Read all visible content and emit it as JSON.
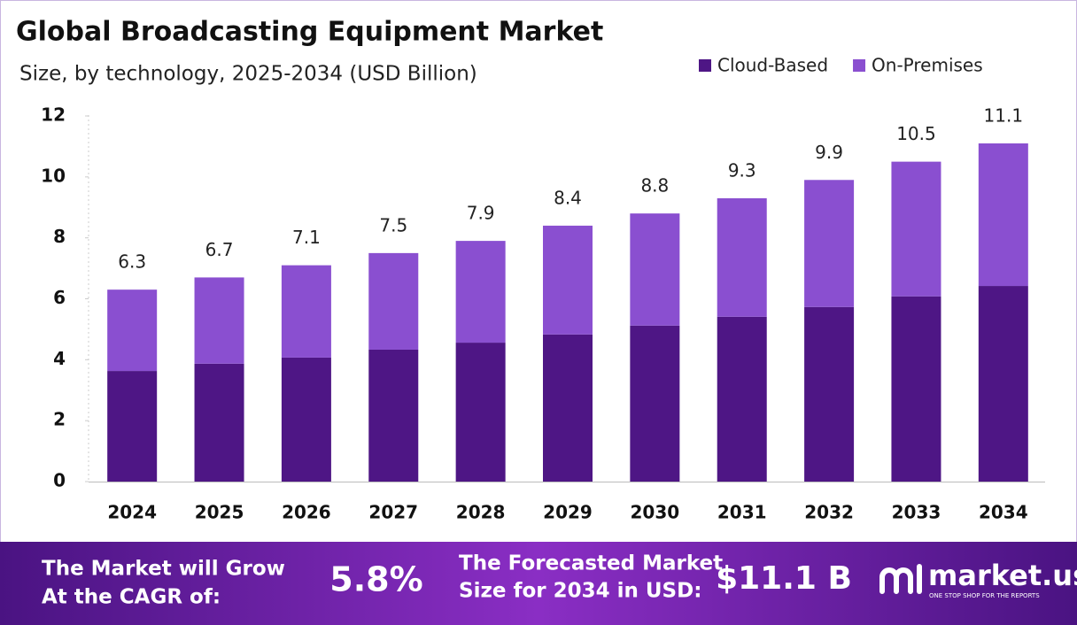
{
  "chart_data": {
    "type": "stacked_bar",
    "title": "Global Broadcasting Equipment Market",
    "subtitle": "Size, by technology, 2025-2034 (USD Billion)",
    "categories": [
      "2024",
      "2025",
      "2026",
      "2027",
      "2028",
      "2029",
      "2030",
      "2031",
      "2032",
      "2033",
      "2034"
    ],
    "series": [
      {
        "name": "Cloud-Based",
        "color": "#4e1685",
        "values": [
          3.63,
          3.87,
          4.07,
          4.33,
          4.56,
          4.83,
          5.12,
          5.41,
          5.73,
          6.08,
          6.42
        ]
      },
      {
        "name": "On-Premises",
        "color": "#8a4fd0",
        "values": [
          2.67,
          2.83,
          3.03,
          3.17,
          3.34,
          3.57,
          3.68,
          3.89,
          4.17,
          4.42,
          4.68
        ]
      }
    ],
    "totals": [
      6.3,
      6.7,
      7.1,
      7.5,
      7.9,
      8.4,
      8.8,
      9.3,
      9.9,
      10.5,
      11.1
    ],
    "ylim": [
      0,
      12
    ],
    "yticks": [
      0,
      2,
      4,
      6,
      8,
      10,
      12
    ],
    "grid": false,
    "legend": "top-right"
  },
  "footer": {
    "cagr_label": [
      "The Market will Grow",
      "At the CAGR of:"
    ],
    "cagr_value": "5.8%",
    "forecast_label": [
      "The Forecasted Market",
      "Size for 2034 in USD:"
    ],
    "forecast_value": "$11.1 B",
    "brand": "market.us",
    "tagline": "ONE STOP SHOP FOR THE REPORTS"
  }
}
